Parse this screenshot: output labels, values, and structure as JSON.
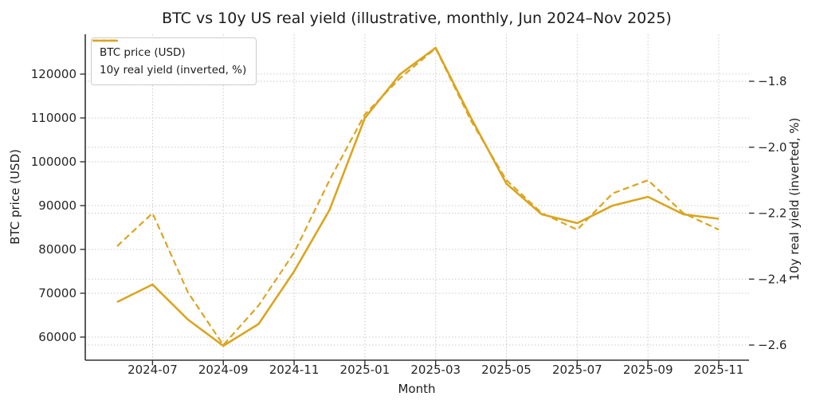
{
  "chart_data": {
    "type": "line",
    "title": "BTC vs 10y US real yield (illustrative, monthly, Jun 2024–Nov 2025)",
    "xlabel": "Month",
    "ylabel_left": "BTC price (USD)",
    "ylabel_right": "10y real yield (inverted, %)",
    "x": [
      "2024-06",
      "2024-07",
      "2024-08",
      "2024-09",
      "2024-10",
      "2024-11",
      "2024-12",
      "2025-01",
      "2025-02",
      "2025-03",
      "2025-04",
      "2025-05",
      "2025-06",
      "2025-07",
      "2025-08",
      "2025-09",
      "2025-10",
      "2025-11"
    ],
    "x_tick_labels": [
      "2024-07",
      "2024-09",
      "2024-11",
      "2025-01",
      "2025-03",
      "2025-05",
      "2025-07",
      "2025-09",
      "2025-11"
    ],
    "series": [
      {
        "name": "BTC price (USD)",
        "axis": "left",
        "style": "solid",
        "values": [
          68000,
          72000,
          64000,
          58000,
          63000,
          75000,
          89000,
          110000,
          120000,
          126000,
          110000,
          95000,
          88000,
          86000,
          90000,
          92000,
          88000,
          87000
        ]
      },
      {
        "name": "10y real yield (inverted, %)",
        "axis": "right",
        "style": "dashed",
        "values": [
          -2.3,
          -2.2,
          -2.44,
          -2.6,
          -2.48,
          -2.32,
          -2.1,
          -1.9,
          -1.79,
          -1.7,
          -1.92,
          -2.1,
          -2.2,
          -2.25,
          -2.14,
          -2.1,
          -2.2,
          -2.25
        ]
      }
    ],
    "left_axis_ticks": [
      60000,
      70000,
      80000,
      90000,
      100000,
      110000,
      120000
    ],
    "right_axis_ticks": [
      -1.8,
      -2.0,
      -2.2,
      -2.4,
      -2.6
    ],
    "legend_position": "upper left",
    "line_color": "#DAA520",
    "grid": true
  }
}
